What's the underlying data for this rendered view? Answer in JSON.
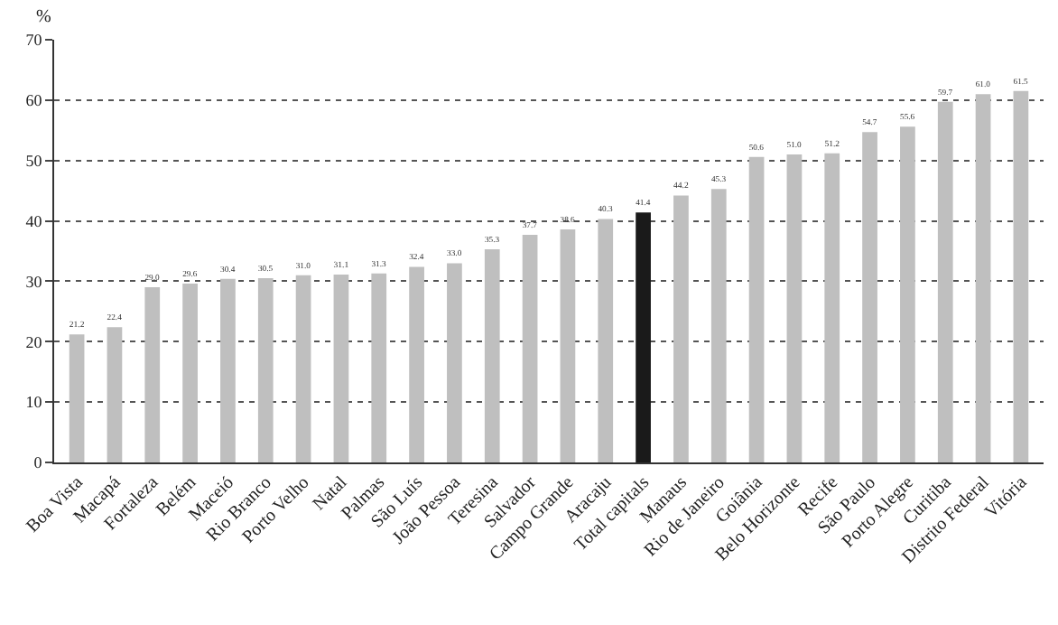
{
  "chart_data": {
    "type": "bar",
    "ylabel": "%",
    "categories": [
      "Boa Vista",
      "Macapá",
      "Fortaleza",
      "Belém",
      "Maceió",
      "Rio Branco",
      "Porto Velho",
      "Natal",
      "Palmas",
      "São Luís",
      "João Pessoa",
      "Teresina",
      "Salvador",
      "Campo Grande",
      "Aracaju",
      "Total capitals",
      "Manaus",
      "Rio de Janeiro",
      "Goiânia",
      "Belo Horizonte",
      "Recife",
      "São Paulo",
      "Porto Alegre",
      "Curitiba",
      "Distrito Federal",
      "Vitória"
    ],
    "values": [
      21.2,
      22.4,
      29.0,
      29.6,
      30.4,
      30.5,
      31.0,
      31.1,
      31.3,
      32.4,
      33.0,
      35.3,
      37.7,
      38.6,
      40.3,
      41.4,
      44.2,
      45.3,
      50.6,
      51.0,
      51.2,
      54.7,
      55.6,
      59.7,
      61.0,
      61.5
    ],
    "colors": [
      "#bfbfbf",
      "#bfbfbf",
      "#bfbfbf",
      "#bfbfbf",
      "#bfbfbf",
      "#bfbfbf",
      "#bfbfbf",
      "#bfbfbf",
      "#bfbfbf",
      "#bfbfbf",
      "#bfbfbf",
      "#bfbfbf",
      "#bfbfbf",
      "#bfbfbf",
      "#bfbfbf",
      "#1a1a1a",
      "#bfbfbf",
      "#bfbfbf",
      "#bfbfbf",
      "#bfbfbf",
      "#bfbfbf",
      "#bfbfbf",
      "#bfbfbf",
      "#bfbfbf",
      "#bfbfbf",
      "#bfbfbf"
    ],
    "ylim": [
      0,
      70
    ],
    "yticks": [
      0,
      10,
      20,
      30,
      40,
      50,
      60,
      70
    ],
    "value_labels": [
      "21.2",
      "22.4",
      "29.0",
      "29.6",
      "30.4",
      "30.5",
      "31.0",
      "31.1",
      "31.3",
      "32.4",
      "33.0",
      "35.3",
      "37.7",
      "38.6",
      "40.3",
      "41.4",
      "44.2",
      "45.3",
      "50.6",
      "51.0",
      "51.2",
      "54.7",
      "55.6",
      "59.7",
      "61.0",
      "61.5"
    ],
    "grid": "y",
    "legend": false
  }
}
